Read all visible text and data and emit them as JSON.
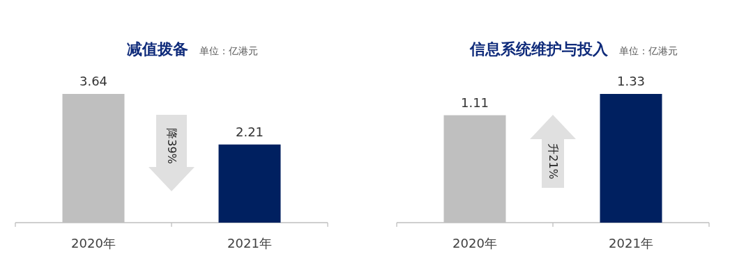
{
  "chart_data": [
    {
      "type": "bar",
      "title": "减值拨备",
      "subtitle": "单位：亿港元",
      "categories": [
        "2020年",
        "2021年"
      ],
      "values": [
        3.64,
        2.21
      ],
      "colors": [
        "#bfbfbf",
        "#002060"
      ],
      "data_labels": true,
      "annotations": [
        "降39%"
      ]
    },
    {
      "type": "bar",
      "title": "信息系统维护与投入",
      "subtitle": "单位：亿港元",
      "categories": [
        "2020年",
        "2021年"
      ],
      "values": [
        1.11,
        1.33
      ],
      "colors": [
        "#bfbfbf",
        "#002060"
      ],
      "data_labels": true,
      "annotations": [
        "升21%"
      ]
    }
  ]
}
